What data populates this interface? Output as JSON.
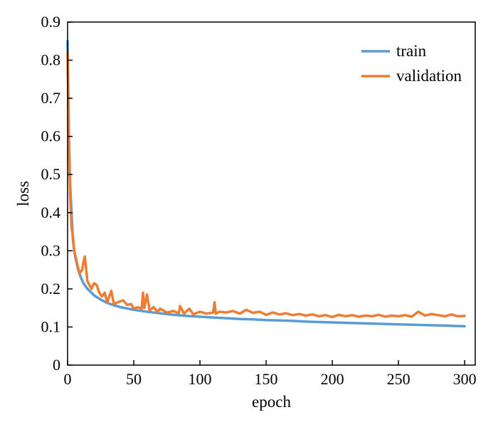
{
  "chart_data": {
    "type": "line",
    "xlabel": "epoch",
    "ylabel": "loss",
    "xlim": [
      0,
      308
    ],
    "ylim": [
      0,
      0.9
    ],
    "xticks": [
      0,
      50,
      100,
      150,
      200,
      250,
      300
    ],
    "yticks": [
      0,
      0.1,
      0.2,
      0.3,
      0.4,
      0.5,
      0.6,
      0.7,
      0.8,
      0.9
    ],
    "grid": false,
    "legend": "top-right",
    "series": [
      {
        "name": "train",
        "color": "#5b9bd5",
        "x": [
          0,
          1,
          2,
          3,
          4,
          5,
          6,
          8,
          10,
          12,
          15,
          18,
          20,
          25,
          30,
          35,
          40,
          50,
          60,
          70,
          80,
          90,
          100,
          110,
          120,
          130,
          140,
          150,
          160,
          170,
          180,
          190,
          200,
          210,
          220,
          230,
          240,
          250,
          260,
          270,
          280,
          290,
          300
        ],
        "y": [
          0.85,
          0.6,
          0.47,
          0.4,
          0.33,
          0.3,
          0.28,
          0.25,
          0.23,
          0.215,
          0.2,
          0.19,
          0.183,
          0.172,
          0.163,
          0.157,
          0.152,
          0.145,
          0.14,
          0.136,
          0.132,
          0.129,
          0.127,
          0.125,
          0.123,
          0.121,
          0.12,
          0.118,
          0.117,
          0.116,
          0.114,
          0.113,
          0.112,
          0.111,
          0.11,
          0.109,
          0.108,
          0.107,
          0.106,
          0.105,
          0.104,
          0.103,
          0.102
        ]
      },
      {
        "name": "validation",
        "color": "#ed7d31",
        "x": [
          0,
          1,
          2,
          3,
          4,
          5,
          7,
          9,
          11,
          12,
          13,
          15,
          18,
          20,
          22,
          24,
          26,
          28,
          30,
          33,
          35,
          38,
          42,
          45,
          48,
          50,
          53,
          56,
          57,
          58,
          60,
          62,
          65,
          68,
          70,
          75,
          80,
          84,
          85,
          88,
          92,
          95,
          100,
          105,
          110,
          111,
          112,
          115,
          120,
          125,
          130,
          135,
          140,
          145,
          150,
          155,
          160,
          165,
          170,
          175,
          180,
          185,
          190,
          195,
          200,
          205,
          210,
          215,
          220,
          225,
          230,
          235,
          240,
          245,
          250,
          255,
          260,
          265,
          270,
          275,
          280,
          285,
          290,
          295,
          300
        ],
        "y": [
          0.82,
          0.58,
          0.44,
          0.36,
          0.34,
          0.3,
          0.27,
          0.24,
          0.25,
          0.27,
          0.285,
          0.22,
          0.2,
          0.215,
          0.21,
          0.19,
          0.18,
          0.19,
          0.165,
          0.195,
          0.16,
          0.165,
          0.17,
          0.158,
          0.16,
          0.148,
          0.152,
          0.148,
          0.19,
          0.15,
          0.185,
          0.143,
          0.152,
          0.14,
          0.148,
          0.138,
          0.142,
          0.136,
          0.155,
          0.135,
          0.148,
          0.133,
          0.14,
          0.135,
          0.138,
          0.165,
          0.135,
          0.14,
          0.138,
          0.142,
          0.135,
          0.145,
          0.137,
          0.14,
          0.132,
          0.138,
          0.133,
          0.136,
          0.131,
          0.134,
          0.13,
          0.133,
          0.128,
          0.131,
          0.126,
          0.132,
          0.128,
          0.131,
          0.127,
          0.13,
          0.128,
          0.132,
          0.127,
          0.13,
          0.128,
          0.131,
          0.127,
          0.14,
          0.13,
          0.134,
          0.131,
          0.128,
          0.133,
          0.128,
          0.129
        ]
      }
    ]
  }
}
